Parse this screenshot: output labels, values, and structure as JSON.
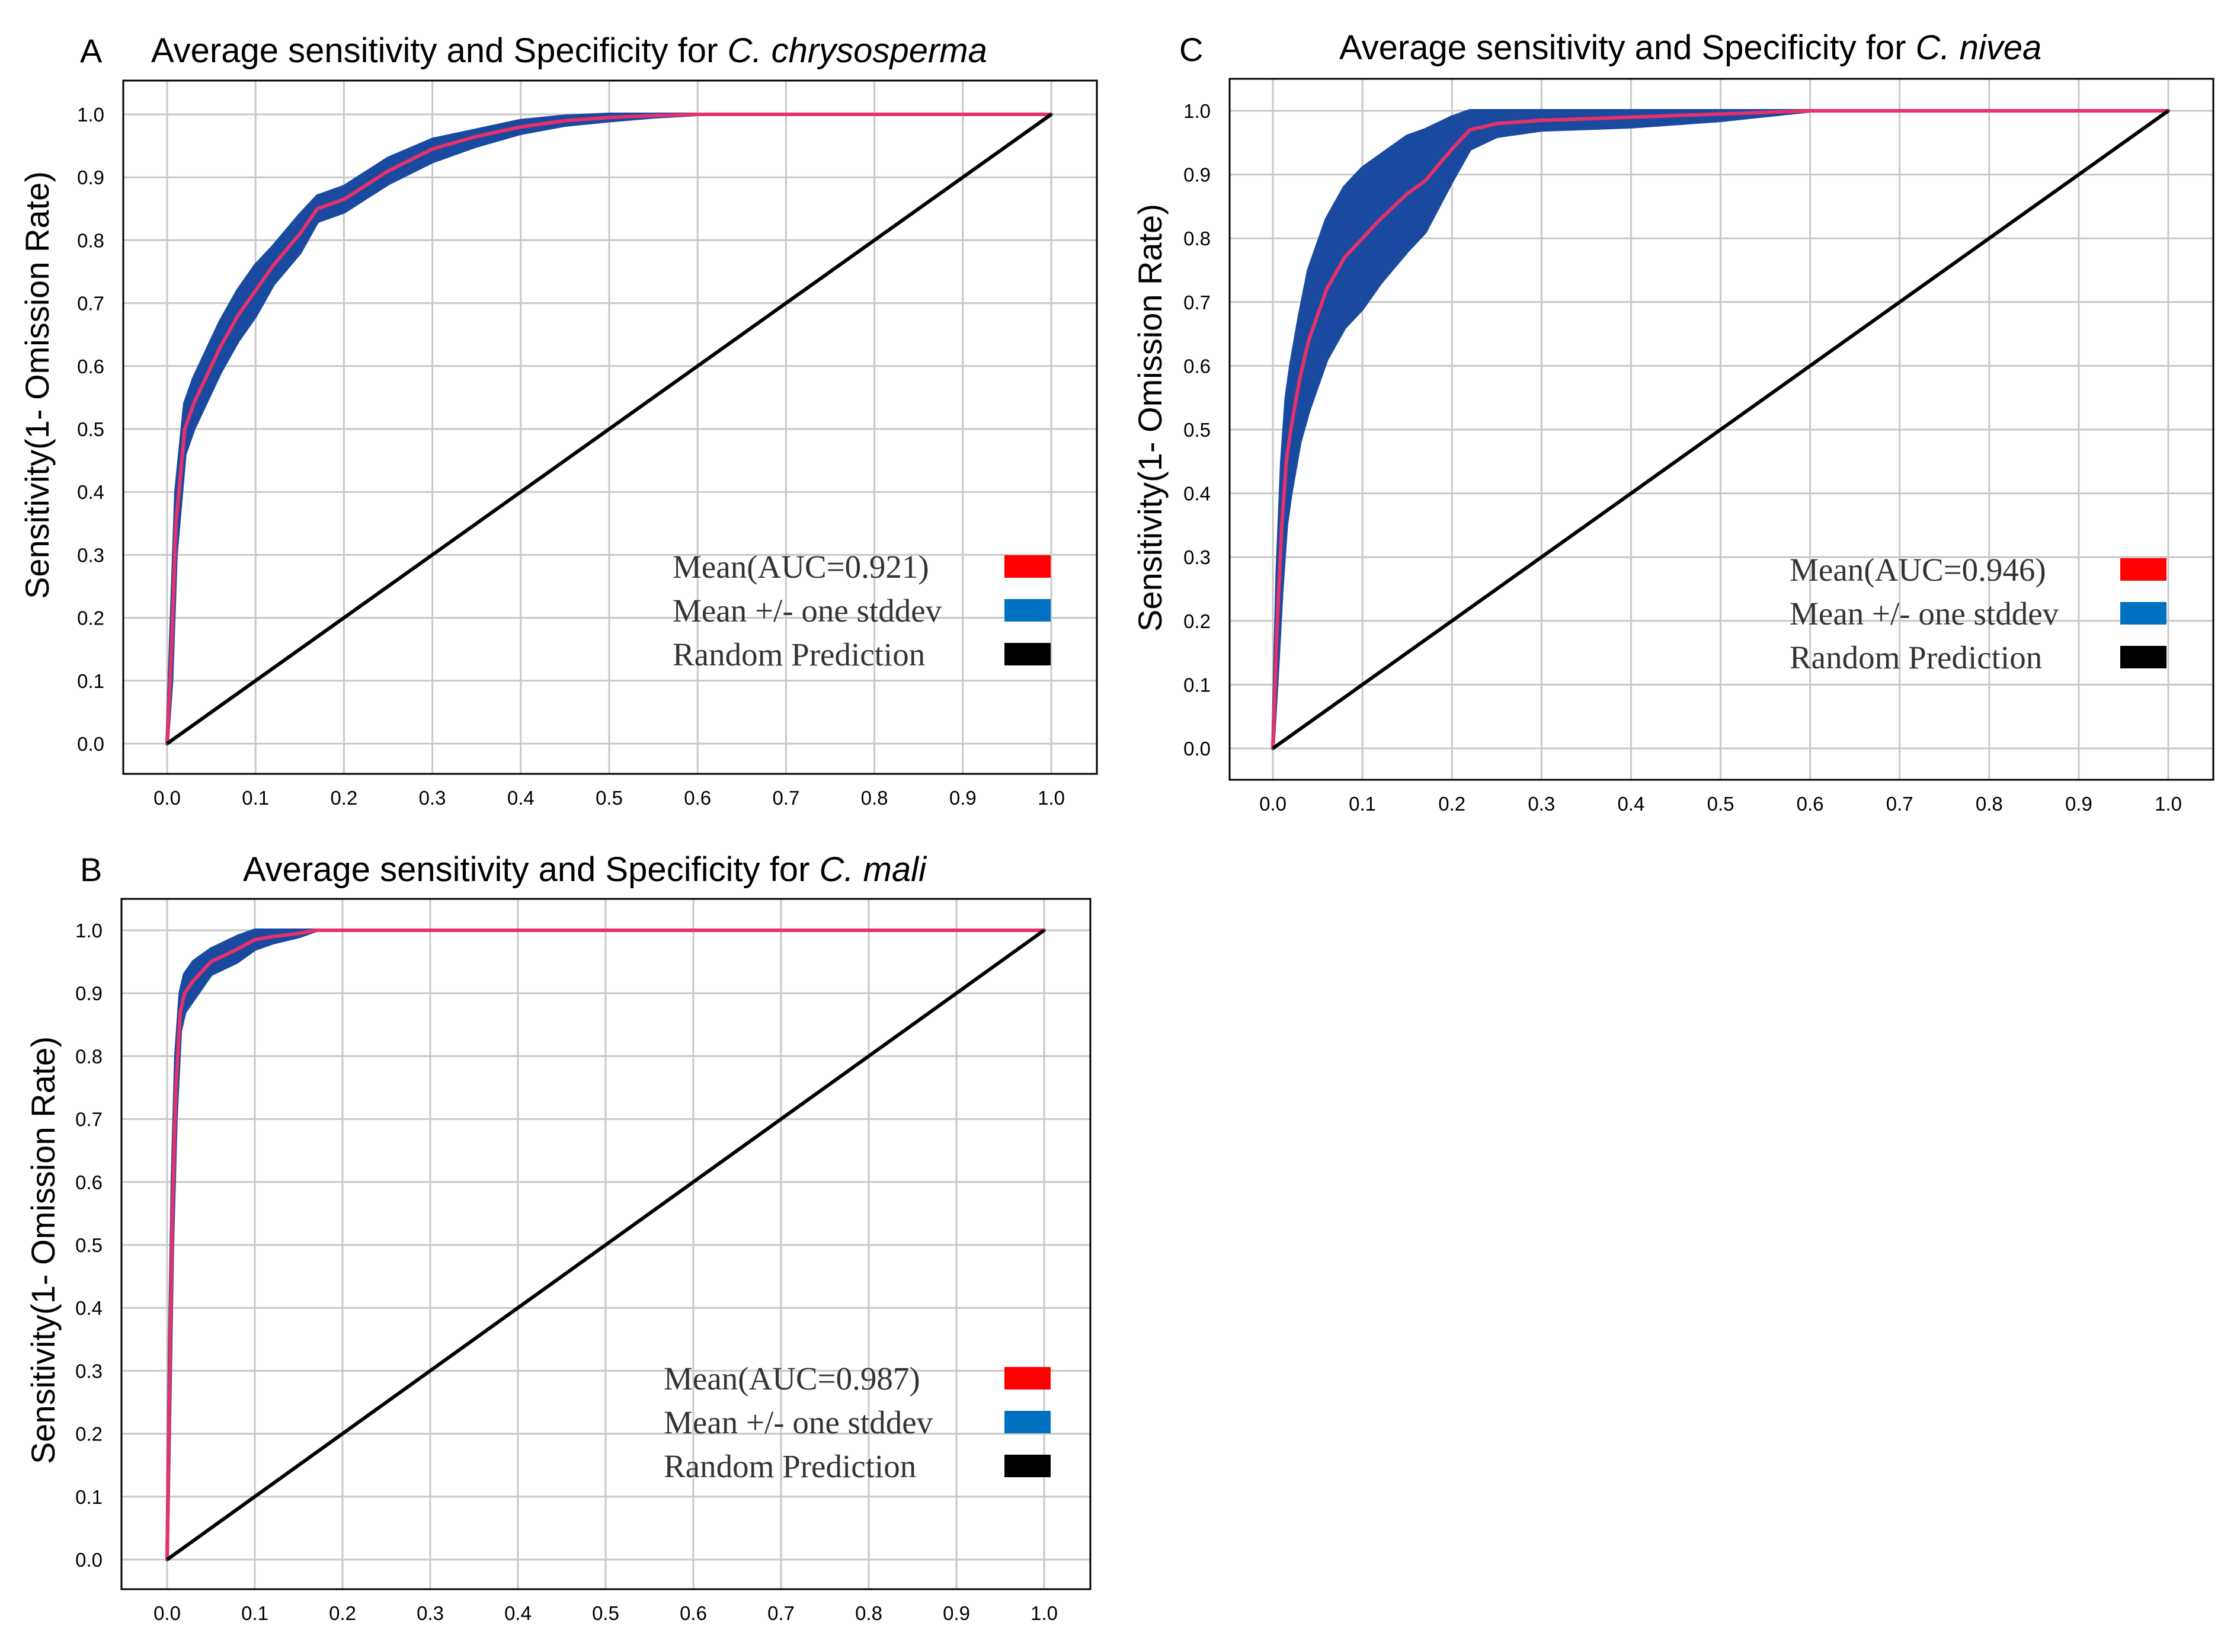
{
  "chart_data": [
    {
      "panel": "A",
      "type": "line",
      "title_prefix": "Average sensitivity and Specificity for ",
      "title_species": "C. chrysosperma",
      "xlabel": "",
      "ylabel": "Sensitivity(1- Omission Rate)",
      "xlim": [
        0,
        1
      ],
      "ylim": [
        0,
        1
      ],
      "x_ticks": [
        "0.0",
        "0.1",
        "0.2",
        "0.3",
        "0.4",
        "0.5",
        "0.6",
        "0.7",
        "0.8",
        "0.9",
        "1.0"
      ],
      "y_ticks": [
        "0.0",
        "0.1",
        "0.2",
        "0.3",
        "0.4",
        "0.5",
        "0.6",
        "0.7",
        "0.8",
        "0.9",
        "1.0"
      ],
      "grid": true,
      "legend_position": "bottom-right",
      "legend": [
        {
          "label": "Mean(AUC=0.921)",
          "color": "#ff0000"
        },
        {
          "label": "Mean +/- one stddev",
          "color": "#0070c0"
        },
        {
          "label": "Random Prediction",
          "color": "#000000"
        }
      ],
      "series": [
        {
          "name": "Mean",
          "color": "#e8306a",
          "x": [
            0,
            0.005,
            0.01,
            0.02,
            0.03,
            0.04,
            0.05,
            0.06,
            0.08,
            0.1,
            0.12,
            0.15,
            0.17,
            0.2,
            0.25,
            0.3,
            0.35,
            0.4,
            0.45,
            0.5,
            0.55,
            0.6,
            0.7,
            0.8,
            0.9,
            1.0
          ],
          "y": [
            0,
            0.15,
            0.35,
            0.5,
            0.54,
            0.57,
            0.6,
            0.63,
            0.68,
            0.72,
            0.76,
            0.81,
            0.85,
            0.865,
            0.91,
            0.945,
            0.965,
            0.98,
            0.99,
            0.995,
            0.998,
            1.0,
            1.0,
            1.0,
            1.0,
            1.0
          ]
        },
        {
          "name": "Mean +/- one stddev",
          "color": "#1a4aa0",
          "x": [
            0,
            0.005,
            0.01,
            0.02,
            0.03,
            0.04,
            0.05,
            0.06,
            0.08,
            0.1,
            0.12,
            0.15,
            0.17,
            0.2,
            0.25,
            0.3,
            0.35,
            0.4,
            0.45,
            0.5,
            0.55,
            0.6,
            0.7,
            0.8,
            0.9,
            1.0
          ],
          "upper": [
            0,
            0.2,
            0.4,
            0.54,
            0.58,
            0.61,
            0.64,
            0.67,
            0.72,
            0.76,
            0.79,
            0.84,
            0.87,
            0.885,
            0.93,
            0.96,
            0.975,
            0.99,
            0.997,
            1.0,
            1.0,
            1.0,
            1.0,
            1.0,
            1.0,
            1.0
          ],
          "lower": [
            0,
            0.1,
            0.3,
            0.46,
            0.5,
            0.53,
            0.56,
            0.59,
            0.64,
            0.68,
            0.73,
            0.78,
            0.83,
            0.845,
            0.89,
            0.925,
            0.95,
            0.97,
            0.983,
            0.99,
            0.996,
            1.0,
            1.0,
            1.0,
            1.0,
            1.0
          ]
        },
        {
          "name": "Random Prediction",
          "color": "#000000",
          "x": [
            0,
            1
          ],
          "y": [
            0,
            1
          ]
        }
      ]
    },
    {
      "panel": "B",
      "type": "line",
      "title_prefix": "Average sensitivity and Specificity for ",
      "title_species": "C. mali",
      "xlabel": "",
      "ylabel": "Sensitivity(1- Omission Rate)",
      "xlim": [
        0,
        1
      ],
      "ylim": [
        0,
        1
      ],
      "x_ticks": [
        "0.0",
        "0.1",
        "0.2",
        "0.3",
        "0.4",
        "0.5",
        "0.6",
        "0.7",
        "0.8",
        "0.9",
        "1.0"
      ],
      "y_ticks": [
        "0.0",
        "0.1",
        "0.2",
        "0.3",
        "0.4",
        "0.5",
        "0.6",
        "0.7",
        "0.8",
        "0.9",
        "1.0"
      ],
      "grid": true,
      "legend_position": "bottom-right",
      "legend": [
        {
          "label": "Mean(AUC=0.987)",
          "color": "#ff0000"
        },
        {
          "label": "Mean +/- one stddev",
          "color": "#0070c0"
        },
        {
          "label": "Random Prediction",
          "color": "#000000"
        }
      ],
      "series": [
        {
          "name": "Mean",
          "color": "#e8306a",
          "x": [
            0,
            0.003,
            0.006,
            0.01,
            0.015,
            0.02,
            0.03,
            0.05,
            0.08,
            0.1,
            0.12,
            0.15,
            0.17,
            0.2,
            0.3,
            0.5,
            0.7,
            1.0
          ],
          "y": [
            0,
            0.3,
            0.55,
            0.75,
            0.87,
            0.9,
            0.92,
            0.95,
            0.97,
            0.985,
            0.99,
            0.995,
            1.0,
            1.0,
            1.0,
            1.0,
            1.0,
            1.0
          ]
        },
        {
          "name": "Mean +/- one stddev",
          "color": "#1a4aa0",
          "x": [
            0,
            0.003,
            0.006,
            0.01,
            0.015,
            0.02,
            0.03,
            0.05,
            0.08,
            0.1,
            0.12,
            0.15,
            0.17,
            0.2,
            0.3,
            0.5,
            0.7,
            1.0
          ],
          "upper": [
            0,
            0.35,
            0.6,
            0.8,
            0.9,
            0.93,
            0.95,
            0.97,
            0.99,
            1.0,
            1.0,
            1.0,
            1.0,
            1.0,
            1.0,
            1.0,
            1.0,
            1.0
          ],
          "lower": [
            0,
            0.25,
            0.5,
            0.7,
            0.84,
            0.87,
            0.89,
            0.93,
            0.95,
            0.97,
            0.98,
            0.99,
            1.0,
            1.0,
            1.0,
            1.0,
            1.0,
            1.0
          ]
        },
        {
          "name": "Random Prediction",
          "color": "#000000",
          "x": [
            0,
            1
          ],
          "y": [
            0,
            1
          ]
        }
      ]
    },
    {
      "panel": "C",
      "type": "line",
      "title_prefix": "Average sensitivity and Specificity for ",
      "title_species": "C. nivea",
      "xlabel": "",
      "ylabel": "Sensitivity(1- Omission Rate)",
      "xlim": [
        0,
        1
      ],
      "ylim": [
        0,
        1
      ],
      "x_ticks": [
        "0.0",
        "0.1",
        "0.2",
        "0.3",
        "0.4",
        "0.5",
        "0.6",
        "0.7",
        "0.8",
        "0.9",
        "1.0"
      ],
      "y_ticks": [
        "0.0",
        "0.1",
        "0.2",
        "0.3",
        "0.4",
        "0.5",
        "0.6",
        "0.7",
        "0.8",
        "0.9",
        "1.0"
      ],
      "grid": true,
      "legend_position": "bottom-right",
      "legend": [
        {
          "label": "Mean(AUC=0.946)",
          "color": "#ff0000"
        },
        {
          "label": "Mean +/- one stddev",
          "color": "#0070c0"
        },
        {
          "label": "Random Prediction",
          "color": "#000000"
        }
      ],
      "series": [
        {
          "name": "Mean",
          "color": "#e8306a",
          "x": [
            0,
            0.005,
            0.01,
            0.015,
            0.02,
            0.03,
            0.04,
            0.05,
            0.06,
            0.08,
            0.1,
            0.12,
            0.15,
            0.17,
            0.2,
            0.22,
            0.25,
            0.3,
            0.4,
            0.5,
            0.6,
            0.7,
            0.8,
            1.0
          ],
          "y": [
            0,
            0.2,
            0.35,
            0.45,
            0.5,
            0.58,
            0.64,
            0.68,
            0.72,
            0.77,
            0.8,
            0.83,
            0.87,
            0.89,
            0.94,
            0.97,
            0.98,
            0.985,
            0.99,
            0.995,
            1.0,
            1.0,
            1.0,
            1.0
          ]
        },
        {
          "name": "Mean +/- one stddev",
          "color": "#1a4aa0",
          "x": [
            0,
            0.005,
            0.01,
            0.015,
            0.02,
            0.03,
            0.04,
            0.05,
            0.06,
            0.08,
            0.1,
            0.12,
            0.15,
            0.17,
            0.2,
            0.22,
            0.25,
            0.3,
            0.4,
            0.5,
            0.6,
            0.7,
            0.8,
            1.0
          ],
          "upper": [
            0,
            0.28,
            0.45,
            0.55,
            0.6,
            0.68,
            0.75,
            0.79,
            0.83,
            0.88,
            0.91,
            0.93,
            0.96,
            0.97,
            0.99,
            1.0,
            1.0,
            1.0,
            1.0,
            1.0,
            1.0,
            1.0,
            1.0,
            1.0
          ],
          "lower": [
            0,
            0.12,
            0.25,
            0.35,
            0.4,
            0.48,
            0.53,
            0.57,
            0.61,
            0.66,
            0.69,
            0.73,
            0.78,
            0.81,
            0.89,
            0.94,
            0.96,
            0.97,
            0.975,
            0.985,
            1.0,
            1.0,
            1.0,
            1.0
          ]
        },
        {
          "name": "Random Prediction",
          "color": "#000000",
          "x": [
            0,
            1
          ],
          "y": [
            0,
            1
          ]
        }
      ]
    }
  ]
}
